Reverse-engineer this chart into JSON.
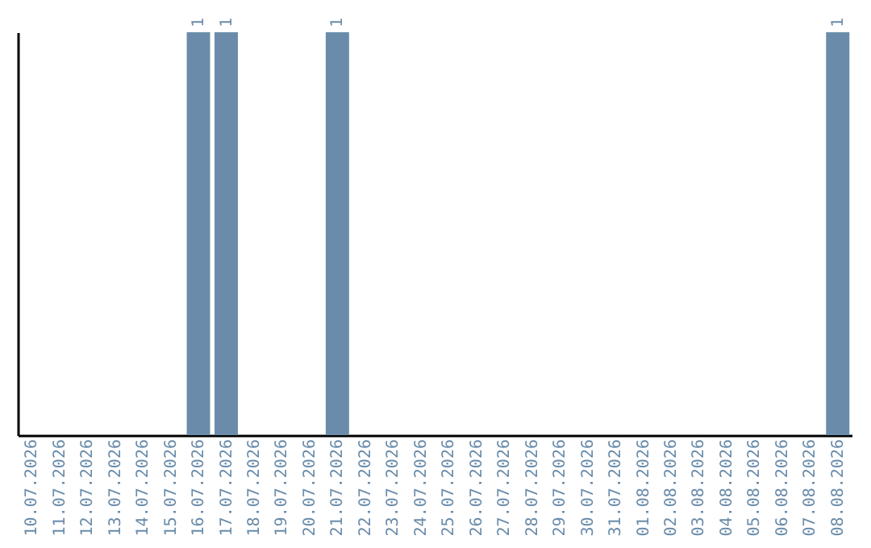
{
  "chart_data": {
    "type": "bar",
    "categories": [
      "10.07.2026",
      "11.07.2026",
      "12.07.2026",
      "13.07.2026",
      "14.07.2026",
      "15.07.2026",
      "16.07.2026",
      "17.07.2026",
      "18.07.2026",
      "19.07.2026",
      "20.07.2026",
      "21.07.2026",
      "22.07.2026",
      "23.07.2026",
      "24.07.2026",
      "25.07.2026",
      "26.07.2026",
      "27.07.2026",
      "28.07.2026",
      "29.07.2026",
      "30.07.2026",
      "31.07.2026",
      "01.08.2026",
      "02.08.2026",
      "03.08.2026",
      "04.08.2026",
      "05.08.2026",
      "06.08.2026",
      "07.08.2026",
      "08.08.2026"
    ],
    "values": [
      0,
      0,
      0,
      0,
      0,
      0,
      1,
      1,
      0,
      0,
      0,
      1,
      0,
      0,
      0,
      0,
      0,
      0,
      0,
      0,
      0,
      0,
      0,
      0,
      0,
      0,
      0,
      0,
      0,
      1
    ],
    "value_labels": [
      null,
      null,
      null,
      null,
      null,
      null,
      "1",
      "1",
      null,
      null,
      null,
      "1",
      null,
      null,
      null,
      null,
      null,
      null,
      null,
      null,
      null,
      null,
      null,
      null,
      null,
      null,
      null,
      null,
      null,
      "1"
    ],
    "color": "#6a8caa",
    "tick_labels": "x"
  }
}
